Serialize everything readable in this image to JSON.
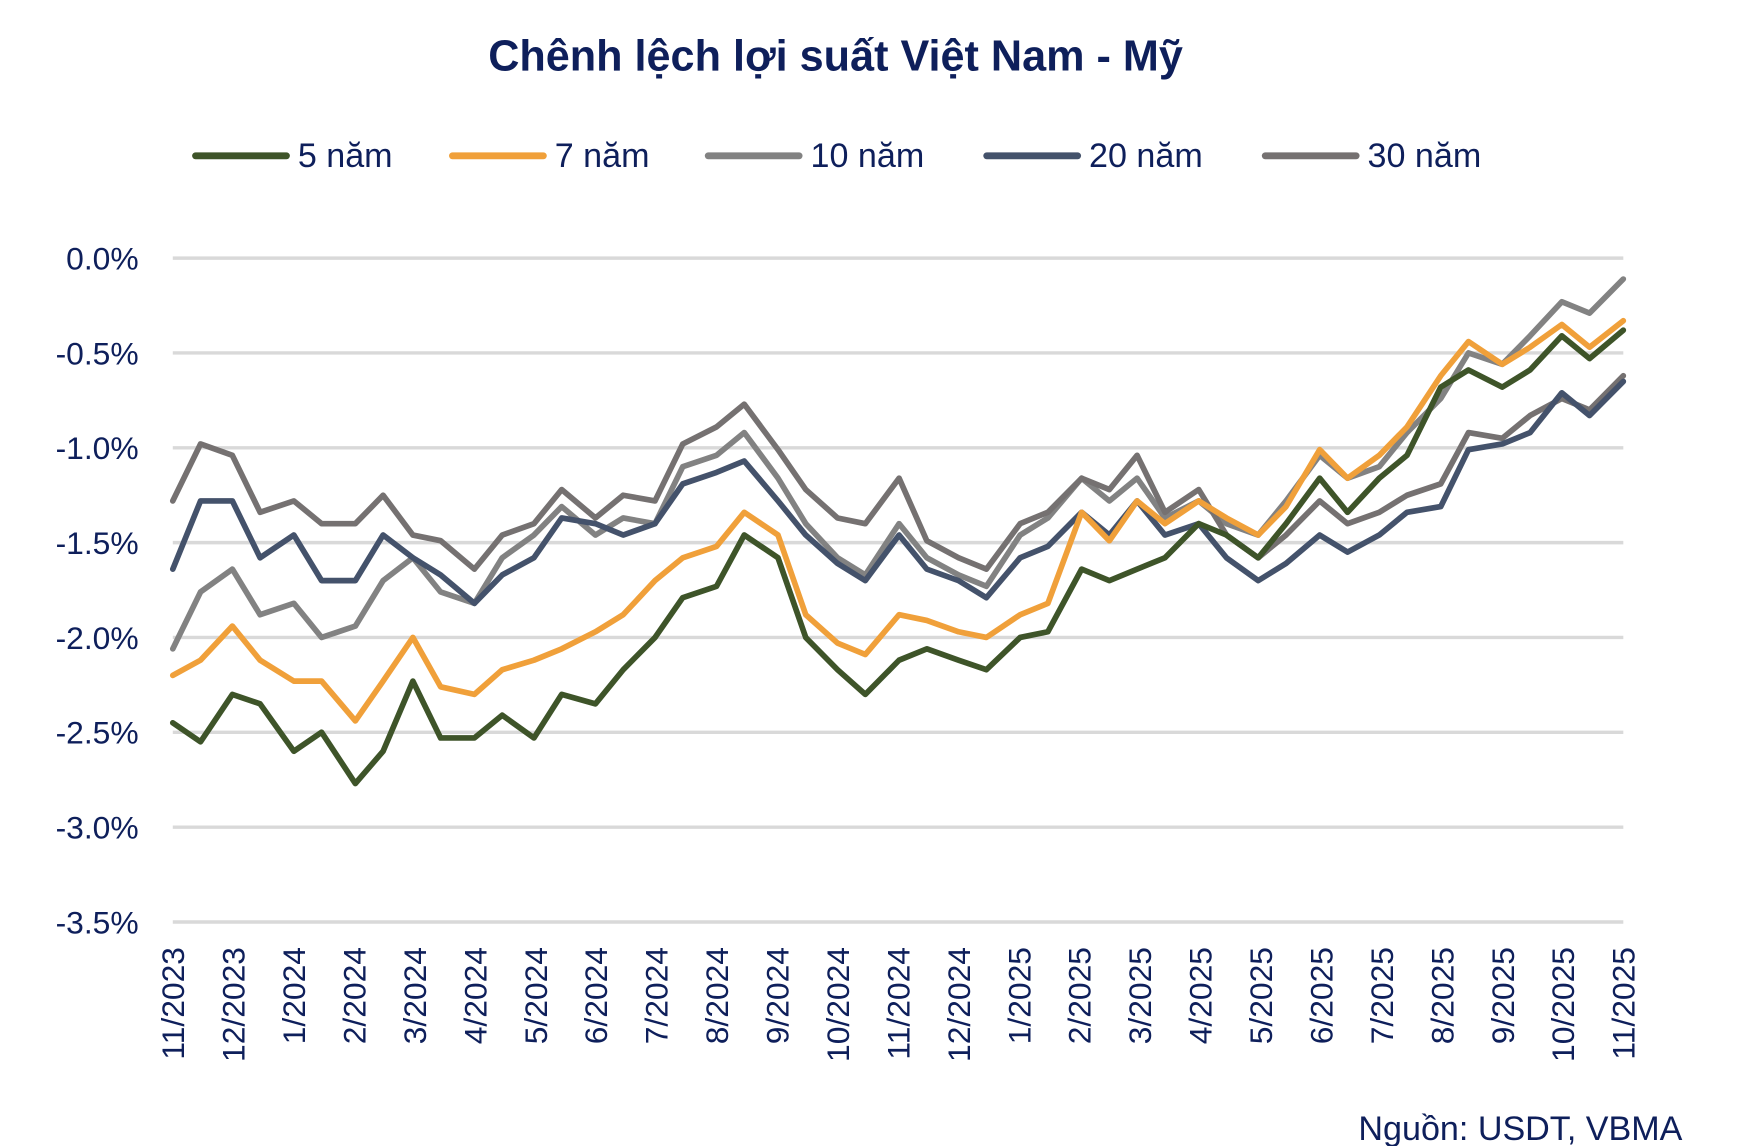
{
  "chart_data": {
    "type": "line",
    "title": "Chênh lệch lợi suất Việt Nam - Mỹ",
    "source": "Nguồn: USDT, VBMA",
    "xlabel": "",
    "ylabel": "",
    "ylim": [
      -3.5,
      0.0
    ],
    "y_ticks": [
      "0.0%",
      "-0.5%",
      "-1.0%",
      "-1.5%",
      "-2.0%",
      "-2.5%",
      "-3.0%",
      "-3.5%"
    ],
    "y_tick_values": [
      0.0,
      -0.5,
      -1.0,
      -1.5,
      -2.0,
      -2.5,
      -3.0,
      -3.5
    ],
    "x_ticks": [
      "11/2023",
      "12/2023",
      "1/2024",
      "2/2024",
      "3/2024",
      "4/2024",
      "5/2024",
      "6/2024",
      "7/2024",
      "8/2024",
      "9/2024",
      "10/2024",
      "11/2024",
      "12/2024",
      "1/2025",
      "2/2025",
      "3/2025",
      "4/2025",
      "5/2025",
      "6/2025",
      "7/2025",
      "8/2025",
      "9/2025",
      "10/2025",
      "11/2025"
    ],
    "grid": true,
    "legend_position": "top",
    "x_dates": [
      "2023-11-01",
      "2023-11-15",
      "2023-12-01",
      "2023-12-15",
      "2024-01-01",
      "2024-01-15",
      "2024-02-01",
      "2024-02-15",
      "2024-03-01",
      "2024-03-15",
      "2024-04-01",
      "2024-04-15",
      "2024-05-01",
      "2024-05-15",
      "2024-06-01",
      "2024-06-15",
      "2024-07-01",
      "2024-07-15",
      "2024-08-01",
      "2024-08-15",
      "2024-09-01",
      "2024-09-15",
      "2024-10-01",
      "2024-10-15",
      "2024-11-01",
      "2024-11-15",
      "2024-12-01",
      "2024-12-15",
      "2025-01-01",
      "2025-01-15",
      "2025-02-01",
      "2025-02-15",
      "2025-03-01",
      "2025-03-15",
      "2025-04-01",
      "2025-04-15",
      "2025-05-01",
      "2025-05-15",
      "2025-06-01",
      "2025-06-15",
      "2025-07-01",
      "2025-07-15",
      "2025-08-01",
      "2025-08-15",
      "2025-09-01",
      "2025-09-15",
      "2025-10-01",
      "2025-10-15",
      "2025-11-01"
    ],
    "series": [
      {
        "name": "5 năm",
        "color": "#3e5429",
        "values": [
          -2.45,
          -2.55,
          -2.3,
          -2.35,
          -2.6,
          -2.5,
          -2.77,
          -2.6,
          -2.23,
          -2.53,
          -2.53,
          -2.41,
          -2.53,
          -2.3,
          -2.35,
          -2.17,
          -2.0,
          -1.79,
          -1.73,
          -1.46,
          -1.58,
          -2.0,
          -2.17,
          -2.3,
          -2.12,
          -2.06,
          -2.12,
          -2.17,
          -2.0,
          -1.97,
          -1.64,
          -1.7,
          -1.64,
          -1.58,
          -1.4,
          -1.46,
          -1.58,
          -1.4,
          -1.16,
          -1.34,
          -1.16,
          -1.04,
          -0.68,
          -0.59,
          -0.68,
          -0.59,
          -0.41,
          -0.53,
          -0.38
        ]
      },
      {
        "name": "7 năm",
        "color": "#f0a03a",
        "values": [
          -2.2,
          -2.12,
          -1.94,
          -2.12,
          -2.23,
          -2.23,
          -2.44,
          -2.23,
          -2.0,
          -2.26,
          -2.3,
          -2.17,
          -2.12,
          -2.06,
          -1.97,
          -1.88,
          -1.7,
          -1.58,
          -1.52,
          -1.34,
          -1.46,
          -1.88,
          -2.03,
          -2.09,
          -1.88,
          -1.91,
          -1.97,
          -2.0,
          -1.88,
          -1.82,
          -1.34,
          -1.49,
          -1.28,
          -1.4,
          -1.28,
          -1.37,
          -1.46,
          -1.31,
          -1.01,
          -1.16,
          -1.04,
          -0.89,
          -0.62,
          -0.44,
          -0.56,
          -0.47,
          -0.35,
          -0.47,
          -0.33
        ]
      },
      {
        "name": "10 năm",
        "color": "#828282",
        "values": [
          -2.06,
          -1.76,
          -1.64,
          -1.88,
          -1.82,
          -2.0,
          -1.94,
          -1.7,
          -1.58,
          -1.76,
          -1.82,
          -1.58,
          -1.46,
          -1.31,
          -1.46,
          -1.37,
          -1.4,
          -1.1,
          -1.04,
          -0.92,
          -1.16,
          -1.4,
          -1.58,
          -1.67,
          -1.4,
          -1.58,
          -1.67,
          -1.73,
          -1.46,
          -1.37,
          -1.16,
          -1.28,
          -1.16,
          -1.37,
          -1.28,
          -1.4,
          -1.46,
          -1.28,
          -1.04,
          -1.16,
          -1.1,
          -0.92,
          -0.74,
          -0.5,
          -0.56,
          -0.41,
          -0.23,
          -0.29,
          -0.11
        ]
      },
      {
        "name": "20 năm",
        "color": "#44526b",
        "values": [
          -1.64,
          -1.28,
          -1.28,
          -1.58,
          -1.46,
          -1.7,
          -1.7,
          -1.46,
          -1.58,
          -1.67,
          -1.82,
          -1.67,
          -1.58,
          -1.37,
          -1.4,
          -1.46,
          -1.4,
          -1.19,
          -1.13,
          -1.07,
          -1.28,
          -1.46,
          -1.61,
          -1.7,
          -1.46,
          -1.64,
          -1.7,
          -1.79,
          -1.58,
          -1.52,
          -1.34,
          -1.46,
          -1.28,
          -1.46,
          -1.4,
          -1.58,
          -1.7,
          -1.61,
          -1.46,
          -1.55,
          -1.46,
          -1.34,
          -1.31,
          -1.01,
          -0.98,
          -0.92,
          -0.71,
          -0.83,
          -0.65
        ]
      },
      {
        "name": "30 năm",
        "color": "#757171",
        "values": [
          -1.28,
          -0.98,
          -1.04,
          -1.34,
          -1.28,
          -1.4,
          -1.4,
          -1.25,
          -1.46,
          -1.49,
          -1.64,
          -1.46,
          -1.4,
          -1.22,
          -1.37,
          -1.25,
          -1.28,
          -0.98,
          -0.89,
          -0.77,
          -1.01,
          -1.22,
          -1.37,
          -1.4,
          -1.16,
          -1.49,
          -1.58,
          -1.64,
          -1.4,
          -1.34,
          -1.16,
          -1.22,
          -1.04,
          -1.34,
          -1.22,
          -1.46,
          -1.58,
          -1.46,
          -1.28,
          -1.4,
          -1.34,
          -1.25,
          -1.19,
          -0.92,
          -0.95,
          -0.83,
          -0.74,
          -0.8,
          -0.62
        ]
      }
    ]
  }
}
